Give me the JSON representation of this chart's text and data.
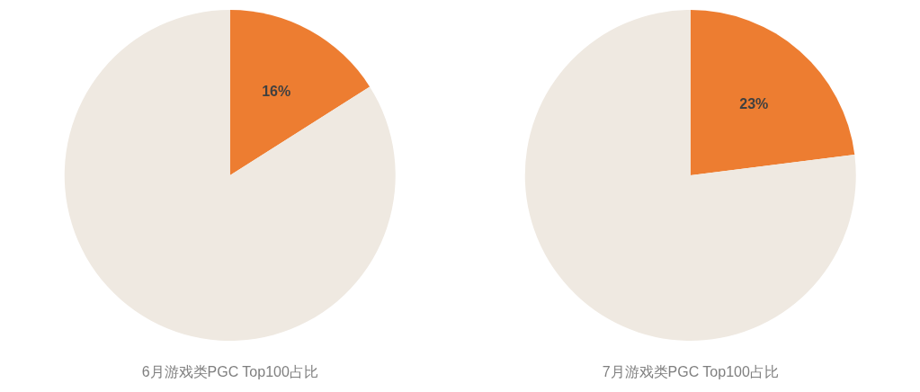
{
  "chart_data": [
    {
      "type": "pie",
      "title": "6月游戏类PGC Top100占比",
      "categories": [
        null,
        null
      ],
      "values": [
        16,
        84
      ],
      "colors": [
        "#ed7d31",
        "#efe9e1"
      ],
      "value_labels": [
        "16%",
        null
      ]
    },
    {
      "type": "pie",
      "title": "7月游戏类PGC Top100占比",
      "categories": [
        null,
        null
      ],
      "values": [
        23,
        77
      ],
      "colors": [
        "#ed7d31",
        "#efe9e1"
      ],
      "value_labels": [
        "23%",
        null
      ]
    }
  ]
}
